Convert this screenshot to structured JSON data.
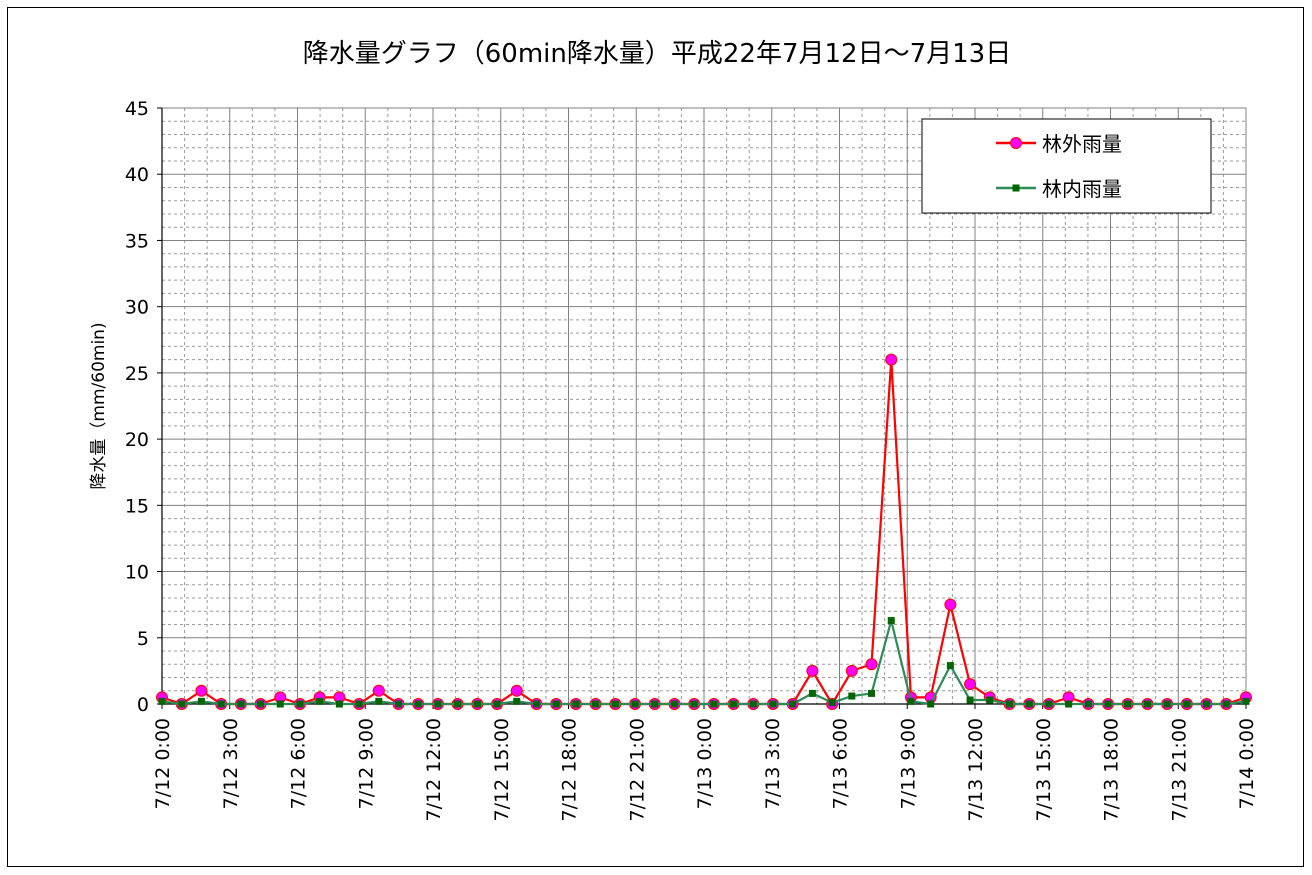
{
  "chart_data": {
    "type": "line",
    "title": "降水量グラフ（60min降水量）平成22年7月12日～7月13日",
    "xlabel": "",
    "ylabel": "降水量（mm/60min)",
    "ylim": [
      0,
      45
    ],
    "yticks": [
      "0",
      "5",
      "10",
      "15",
      "20",
      "25",
      "30",
      "35",
      "40",
      "45"
    ],
    "xtick_labels": [
      "7/12 0:00",
      "7/12 3:00",
      "7/12 6:00",
      "7/12 9:00",
      "7/12 12:00",
      "7/12 15:00",
      "7/12 18:00",
      "7/12 21:00",
      "7/13 0:00",
      "7/13 3:00",
      "7/13 6:00",
      "7/13 9:00",
      "7/13 12:00",
      "7/13 15:00",
      "7/13 18:00",
      "7/13 21:00",
      "7/14 0:00"
    ],
    "x_hours_start": "7/12 0:00",
    "x_hours_end": "7/14 0:00",
    "grid": true,
    "legend_position": "top-right",
    "series": [
      {
        "name": "林外雨量",
        "color": "#ff0000",
        "marker_color": "#ff00ff",
        "marker": "circle",
        "values": [
          0.5,
          0,
          1,
          0,
          0,
          0,
          0.5,
          0,
          0.5,
          0.5,
          0,
          1,
          0,
          0,
          0,
          0,
          0,
          0,
          1,
          0,
          0,
          0,
          0,
          0,
          0,
          0,
          0,
          0,
          0,
          0,
          0,
          0,
          0,
          2.5,
          0,
          2.5,
          3,
          26,
          0.5,
          0.5,
          7.5,
          1.5,
          0.5,
          0,
          0,
          0,
          0.5,
          0,
          0,
          0,
          0,
          0,
          0,
          0,
          0,
          0.5
        ]
      },
      {
        "name": "林内雨量",
        "color": "#2e8b57",
        "marker_color": "#006400",
        "marker": "square",
        "values": [
          0.2,
          0,
          0.2,
          0,
          0,
          0,
          0,
          0,
          0.2,
          0,
          0,
          0.2,
          0,
          0,
          0,
          0,
          0,
          0,
          0.2,
          0,
          0,
          0,
          0,
          0,
          0,
          0,
          0,
          0,
          0,
          0,
          0,
          0,
          0,
          0.8,
          0.1,
          0.6,
          0.8,
          6.3,
          0.2,
          0,
          2.9,
          0.3,
          0.3,
          0,
          0,
          0,
          0,
          0,
          0,
          0,
          0,
          0,
          0,
          0,
          0,
          0.2
        ]
      }
    ]
  }
}
